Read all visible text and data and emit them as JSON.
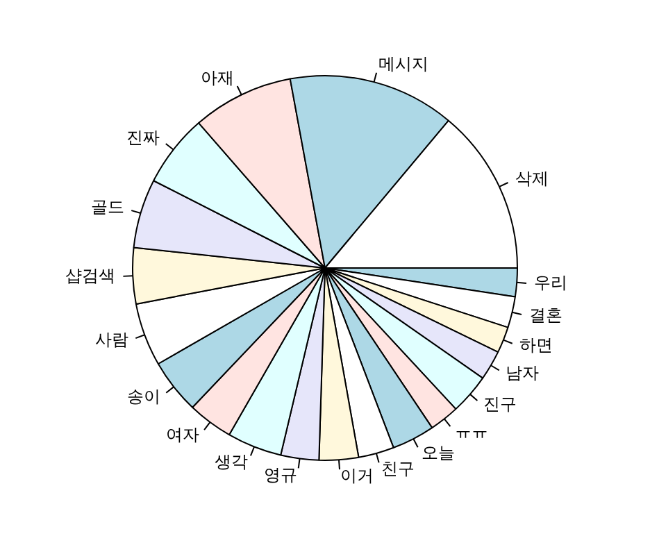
{
  "chart_data": {
    "type": "pie",
    "categories": [
      "우리",
      "결혼",
      "하면",
      "남자",
      "진구",
      "ㅠㅠ",
      "오늘",
      "친구",
      "이거",
      "영규",
      "생각",
      "여자",
      "송이",
      "사람",
      "샵검색",
      "골드",
      "진짜",
      "아재",
      "메시지",
      "삭제"
    ],
    "values": [
      2.4,
      2.6,
      2.2,
      2.5,
      3.4,
      2.5,
      3.6,
      3.0,
      3.3,
      3.2,
      4.6,
      3.8,
      4.6,
      5.3,
      4.7,
      5.8,
      6.1,
      8.5,
      14.0,
      13.9
    ],
    "colors": [
      "#add8e6",
      "#ffffff",
      "#fff8dc",
      "#e6e6fa",
      "#e0ffff",
      "#ffe4e1",
      "#add8e6",
      "#ffffff",
      "#fff8dc",
      "#e6e6fa",
      "#e0ffff",
      "#ffe4e1",
      "#add8e6",
      "#ffffff",
      "#fff8dc",
      "#e6e6fa",
      "#e0ffff",
      "#ffe4e1",
      "#add8e6",
      "#ffffff"
    ],
    "legend": false
  }
}
